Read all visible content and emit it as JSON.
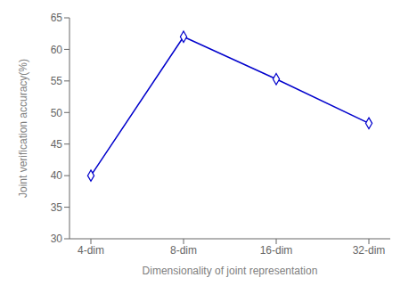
{
  "chart_data": {
    "type": "line",
    "categories": [
      "4-dim",
      "8-dim",
      "16-dim",
      "32-dim"
    ],
    "values": [
      40.0,
      62.0,
      55.3,
      48.3
    ],
    "color": "#0000CC",
    "marker": "diamond",
    "xlabel": "Dimensionality of joint representation",
    "ylabel": "Joint verification accuracy(%)",
    "ylim": [
      30,
      65
    ],
    "yticks": [
      30,
      35,
      40,
      45,
      50,
      55,
      60,
      65
    ],
    "grid": false
  }
}
